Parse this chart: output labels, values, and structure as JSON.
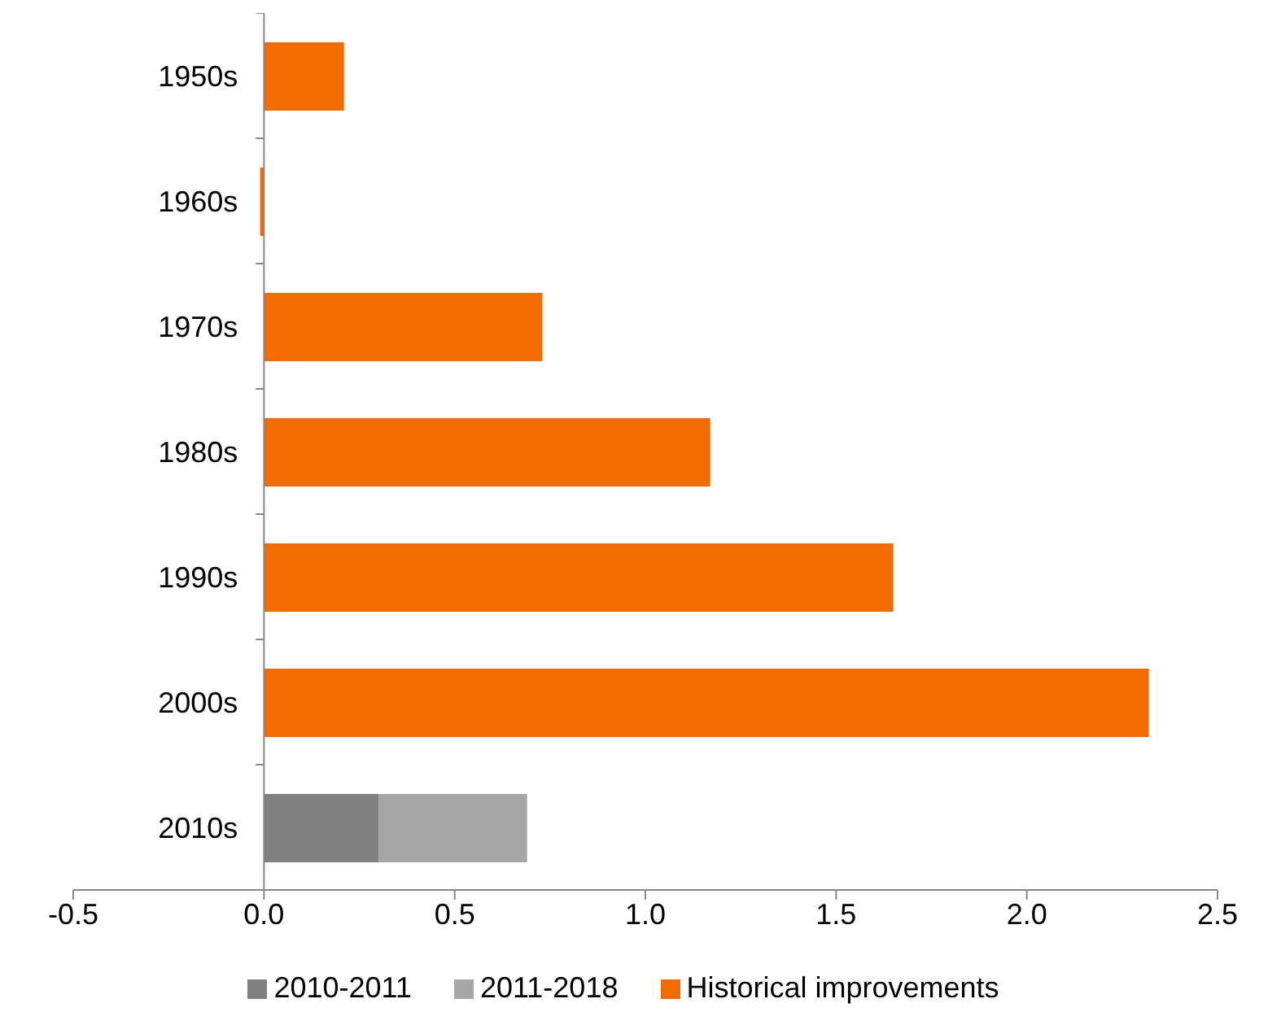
{
  "chart_data": {
    "type": "bar",
    "orientation": "horizontal",
    "stacked": true,
    "categories": [
      "1950s",
      "1960s",
      "1970s",
      "1980s",
      "1990s",
      "2000s",
      "2010s"
    ],
    "series": [
      {
        "name": "Historical improvements",
        "color": "#f26b00",
        "values": [
          0.21,
          -0.01,
          0.73,
          1.17,
          1.65,
          2.32,
          null
        ]
      },
      {
        "name": "2010-2011",
        "color": "#808080",
        "values": [
          null,
          null,
          null,
          null,
          null,
          null,
          0.3
        ]
      },
      {
        "name": "2011-2018",
        "color": "#a6a6a6",
        "values": [
          null,
          null,
          null,
          null,
          null,
          null,
          0.39
        ]
      }
    ],
    "xlim": [
      -0.5,
      2.5
    ],
    "xticks": [
      -0.5,
      {
        "value": 0,
        "label": "0.0"
      },
      0.5,
      {
        "value": 1,
        "label": "1.0"
      },
      1.5,
      {
        "value": 2,
        "label": "2.0"
      },
      2.5
    ],
    "grid": false,
    "legend": "bottom"
  }
}
